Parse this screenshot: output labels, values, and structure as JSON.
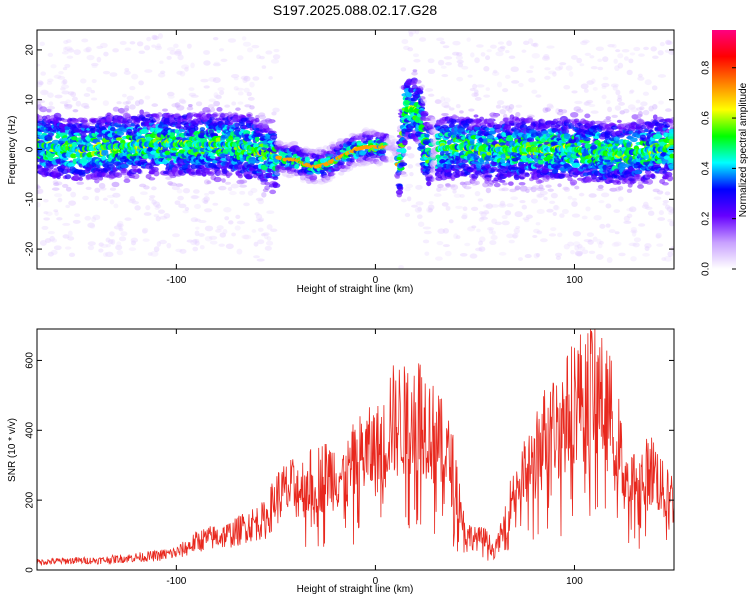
{
  "title": "S197.2025.088.02.17.G28",
  "chart_data": [
    {
      "type": "heatmap",
      "xlabel": "Height of straight line (km)",
      "ylabel": "Frequency (Hz)",
      "xlim": [
        -170,
        150
      ],
      "ylim": [
        -24,
        24
      ],
      "xticks": [
        -100,
        0,
        100
      ],
      "yticks": [
        -20,
        -10,
        0,
        10,
        20
      ],
      "grid": false,
      "colorbar": {
        "label": "Normalized spectral amplitude",
        "range": [
          0,
          0.95
        ],
        "ticks": [
          0.0,
          0.2,
          0.4,
          0.6,
          0.8
        ],
        "tick_labels": [
          "0.0",
          "0.2",
          "0.4",
          "0.6",
          "0.8"
        ],
        "colormap": [
          "#ffffff",
          "#c8a0ff",
          "#6600ff",
          "#0000ff",
          "#00ffff",
          "#00ff00",
          "#ffff00",
          "#ff8000",
          "#ff0000",
          "#ff0080"
        ]
      },
      "ridge": {
        "x": [
          -170,
          -150,
          -120,
          -90,
          -70,
          -60,
          -55,
          -45,
          -40,
          -35,
          -30,
          -25,
          -20,
          -15,
          -10,
          -5,
          0,
          5,
          10,
          12,
          15,
          18,
          20,
          22,
          25,
          27,
          30,
          40,
          60,
          80,
          100,
          120,
          140,
          150
        ],
        "y": [
          1,
          0,
          1,
          1,
          1,
          0,
          -1,
          -2,
          -2,
          -3,
          -3.5,
          -3,
          -2,
          -1,
          0,
          0.5,
          0.5,
          0.5,
          0,
          -5,
          8,
          8,
          8,
          7.5,
          0,
          -1,
          0,
          0.5,
          0,
          0,
          0,
          -1,
          0,
          0
        ]
      }
    },
    {
      "type": "line",
      "xlabel": "Height of straight line (km)",
      "ylabel": "SNR (10 * v/v)",
      "xlim": [
        -170,
        150
      ],
      "ylim": [
        0,
        690
      ],
      "xticks": [
        -100,
        0,
        100
      ],
      "yticks": [
        0,
        200,
        400,
        600
      ],
      "grid": false,
      "series": [
        {
          "color": "#e8281e",
          "x": [
            -170,
            -160,
            -150,
            -140,
            -130,
            -120,
            -110,
            -100,
            -95,
            -90,
            -85,
            -80,
            -75,
            -70,
            -65,
            -60,
            -55,
            -50,
            -45,
            -40,
            -35,
            -30,
            -25,
            -20,
            -15,
            -10,
            -5,
            0,
            5,
            8,
            10,
            12,
            15,
            20,
            25,
            30,
            35,
            40,
            45,
            50,
            55,
            60,
            65,
            70,
            75,
            80,
            85,
            90,
            95,
            100,
            105,
            110,
            115,
            120,
            125,
            130,
            135,
            140,
            145,
            150
          ],
          "y": [
            25,
            28,
            30,
            30,
            35,
            40,
            45,
            55,
            70,
            90,
            100,
            105,
            110,
            120,
            140,
            150,
            160,
            230,
            250,
            260,
            270,
            290,
            300,
            310,
            290,
            350,
            370,
            380,
            400,
            500,
            450,
            480,
            470,
            520,
            480,
            420,
            380,
            300,
            120,
            100,
            100,
            60,
            140,
            270,
            300,
            350,
            430,
            450,
            480,
            550,
            560,
            600,
            520,
            480,
            300,
            280,
            300,
            320,
            240,
            230
          ]
        }
      ]
    }
  ]
}
